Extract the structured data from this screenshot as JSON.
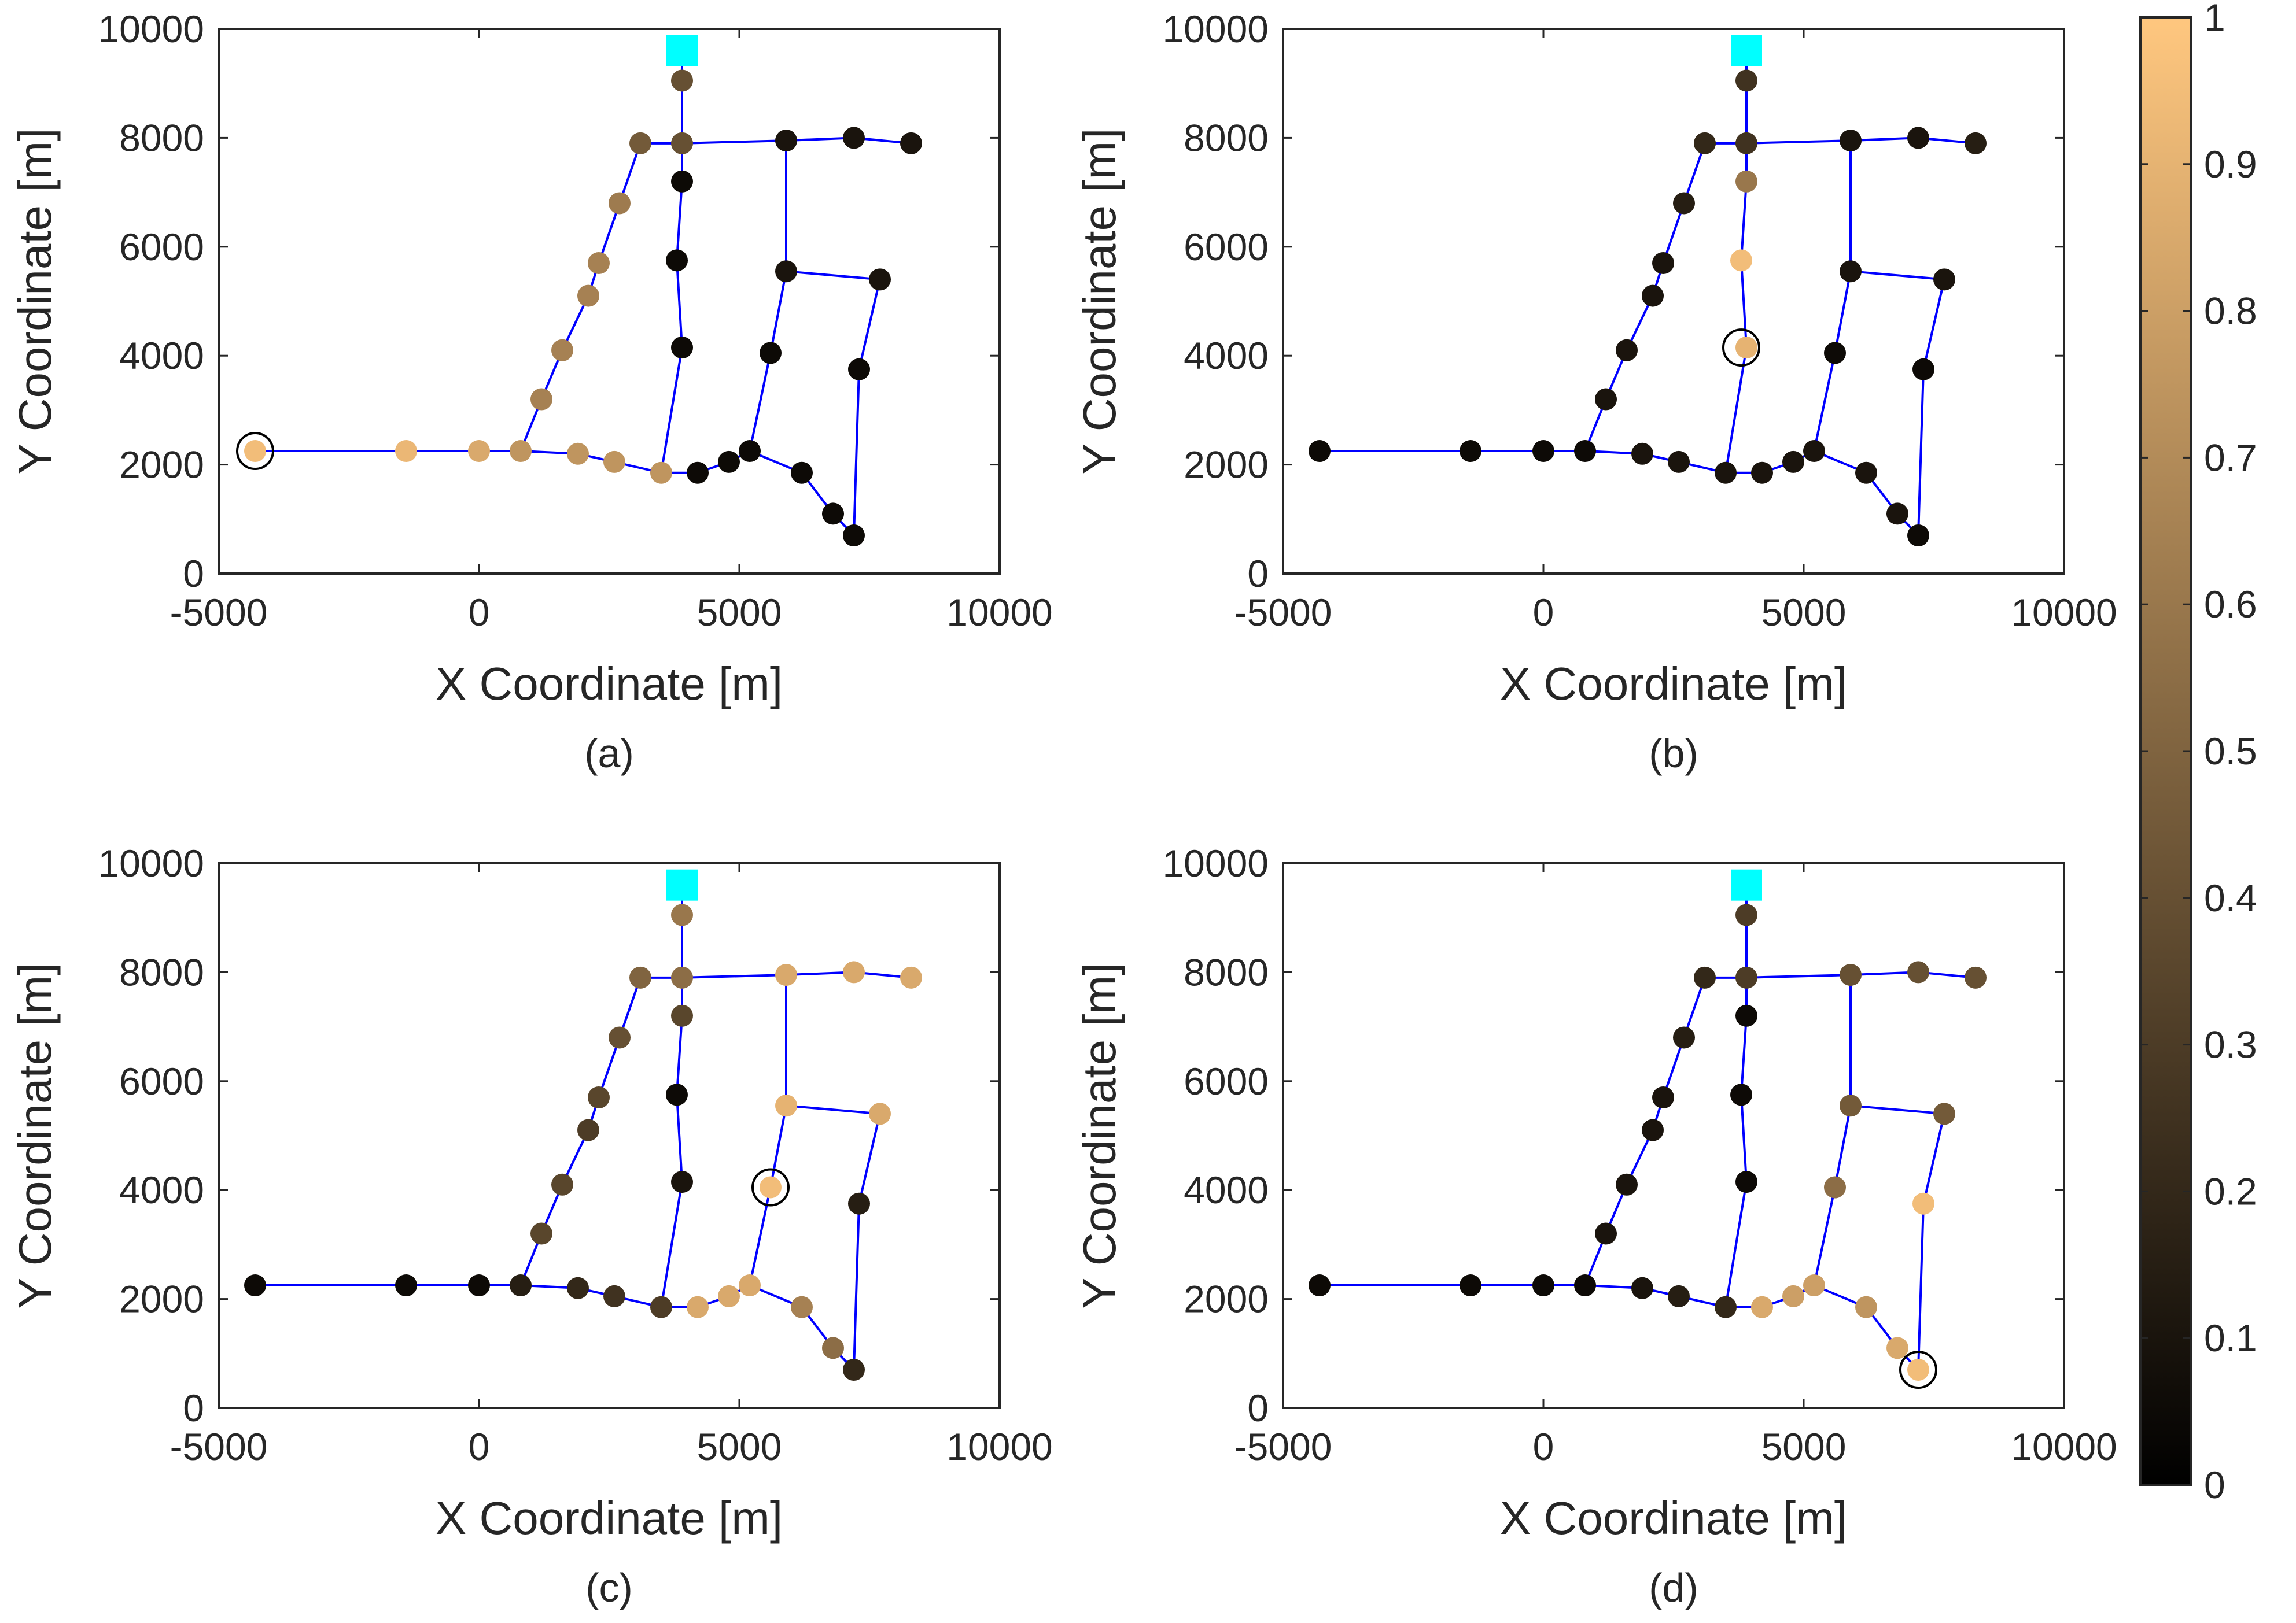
{
  "figure": {
    "colors": {
      "edge": "#0000ff",
      "source_marker": "#00ffff",
      "axes_frame": "#262626",
      "highlight_ring": "#000000"
    },
    "colormap": {
      "name": "copper",
      "stops": [
        "#000000",
        "#ffc77f"
      ]
    },
    "colorbar": {
      "min": 0,
      "max": 1,
      "ticks": [
        0,
        0.1,
        0.2,
        0.3,
        0.4,
        0.5,
        0.6,
        0.7,
        0.8,
        0.9,
        1
      ],
      "tick_labels": [
        "0",
        "0.1",
        "0.2",
        "0.3",
        "0.4",
        "0.5",
        "0.6",
        "0.7",
        "0.8",
        "0.9",
        "1"
      ]
    }
  },
  "chart_data": [
    {
      "type": "scatter",
      "caption": "(a)",
      "xlabel": "X Coordinate [m]",
      "ylabel": "Y Coordinate [m]",
      "xlim": [
        -5000,
        10000
      ],
      "ylim": [
        0,
        10000
      ],
      "xticks": [
        -5000,
        0,
        5000,
        10000
      ],
      "xtick_labels": [
        "-5000",
        "0",
        "5000",
        "10000"
      ],
      "yticks": [
        0,
        2000,
        4000,
        6000,
        8000,
        10000
      ],
      "ytick_labels": [
        "0",
        "2000",
        "4000",
        "6000",
        "8000",
        "10000"
      ],
      "source": {
        "x": 3900,
        "y": 9600
      },
      "nodes": {
        "x": [
          -4300,
          -1400,
          0,
          800,
          1900,
          2600,
          3500,
          4200,
          4800,
          5200,
          6200,
          6800,
          7200,
          1200,
          1600,
          2100,
          2300,
          2700,
          3100,
          3900,
          3900,
          3900,
          3800,
          3900,
          5600,
          5900,
          5900,
          7200,
          8300,
          7700,
          7300
        ],
        "y": [
          2250,
          2250,
          2250,
          2250,
          2200,
          2050,
          1850,
          1850,
          2050,
          2250,
          1850,
          1100,
          700,
          3200,
          4100,
          5100,
          5700,
          6800,
          7900,
          9050,
          7900,
          7200,
          5750,
          4150,
          4050,
          5550,
          7950,
          8000,
          7900,
          5400,
          3750
        ],
        "values": [
          0.95,
          0.92,
          0.85,
          0.75,
          0.75,
          0.75,
          0.75,
          0.05,
          0.05,
          0.05,
          0.05,
          0.05,
          0.05,
          0.65,
          0.65,
          0.65,
          0.65,
          0.62,
          0.45,
          0.4,
          0.4,
          0.05,
          0.05,
          0.05,
          0.05,
          0.1,
          0.1,
          0.1,
          0.1,
          0.1,
          0.05
        ]
      },
      "highlight": {
        "x": -4300,
        "y": 2250
      }
    },
    {
      "type": "scatter",
      "caption": "(b)",
      "xlabel": "X Coordinate [m]",
      "ylabel": "Y Coordinate [m]",
      "xlim": [
        -5000,
        10000
      ],
      "ylim": [
        0,
        10000
      ],
      "xticks": [
        -5000,
        0,
        5000,
        10000
      ],
      "xtick_labels": [
        "-5000",
        "0",
        "5000",
        "10000"
      ],
      "yticks": [
        0,
        2000,
        4000,
        6000,
        8000,
        10000
      ],
      "ytick_labels": [
        "0",
        "2000",
        "4000",
        "6000",
        "8000",
        "10000"
      ],
      "source": {
        "x": 3900,
        "y": 9600
      },
      "nodes": {
        "x": [
          -4300,
          -1400,
          0,
          800,
          1900,
          2600,
          3500,
          4200,
          4800,
          5200,
          6200,
          6800,
          7200,
          1200,
          1600,
          2100,
          2300,
          2700,
          3100,
          3900,
          3900,
          3900,
          3800,
          3900,
          5600,
          5900,
          5900,
          7200,
          8300,
          7700,
          7300
        ],
        "y": [
          2250,
          2250,
          2250,
          2250,
          2200,
          2050,
          1850,
          1850,
          2050,
          2250,
          1850,
          1100,
          700,
          3200,
          4100,
          5100,
          5700,
          6800,
          7900,
          9050,
          7900,
          7200,
          5750,
          4150,
          4050,
          5550,
          7950,
          8000,
          7900,
          5400,
          3750
        ],
        "values": [
          0.05,
          0.05,
          0.05,
          0.05,
          0.1,
          0.1,
          0.1,
          0.1,
          0.1,
          0.1,
          0.1,
          0.1,
          0.05,
          0.1,
          0.1,
          0.1,
          0.1,
          0.15,
          0.2,
          0.25,
          0.25,
          0.6,
          0.95,
          0.9,
          0.05,
          0.1,
          0.1,
          0.1,
          0.15,
          0.1,
          0.05
        ]
      },
      "highlight": {
        "x": 3800,
        "y": 4150
      }
    },
    {
      "type": "scatter",
      "caption": "(c)",
      "xlabel": "X Coordinate [m]",
      "ylabel": "Y Coordinate [m]",
      "xlim": [
        -5000,
        10000
      ],
      "ylim": [
        0,
        10000
      ],
      "xticks": [
        -5000,
        0,
        5000,
        10000
      ],
      "xtick_labels": [
        "-5000",
        "0",
        "5000",
        "10000"
      ],
      "yticks": [
        0,
        2000,
        4000,
        6000,
        8000,
        10000
      ],
      "ytick_labels": [
        "0",
        "2000",
        "4000",
        "6000",
        "8000",
        "10000"
      ],
      "source": {
        "x": 3900,
        "y": 9600
      },
      "nodes": {
        "x": [
          -4300,
          -1400,
          0,
          800,
          1900,
          2600,
          3500,
          4200,
          4800,
          5200,
          6200,
          6800,
          7200,
          1200,
          1600,
          2100,
          2300,
          2700,
          3100,
          3900,
          3900,
          3900,
          3800,
          3900,
          5600,
          5900,
          5900,
          7200,
          8300,
          7700,
          7300
        ],
        "y": [
          2250,
          2250,
          2250,
          2250,
          2200,
          2050,
          1850,
          1850,
          2050,
          2250,
          1850,
          1100,
          700,
          3200,
          4100,
          5100,
          5700,
          6800,
          7900,
          9050,
          7900,
          7200,
          5750,
          4150,
          4050,
          5550,
          7950,
          8000,
          7900,
          5400,
          3750
        ],
        "values": [
          0.05,
          0.05,
          0.05,
          0.15,
          0.2,
          0.25,
          0.3,
          0.85,
          0.85,
          0.85,
          0.65,
          0.55,
          0.2,
          0.35,
          0.35,
          0.3,
          0.35,
          0.4,
          0.5,
          0.6,
          0.55,
          0.35,
          0.05,
          0.1,
          0.95,
          0.9,
          0.85,
          0.85,
          0.85,
          0.85,
          0.15
        ]
      },
      "highlight": {
        "x": 5600,
        "y": 4050
      }
    },
    {
      "type": "scatter",
      "caption": "(d)",
      "xlabel": "X Coordinate [m]",
      "ylabel": "Y Coordinate [m]",
      "xlim": [
        -5000,
        10000
      ],
      "ylim": [
        0,
        10000
      ],
      "xticks": [
        -5000,
        0,
        5000,
        10000
      ],
      "xtick_labels": [
        "-5000",
        "0",
        "5000",
        "10000"
      ],
      "yticks": [
        0,
        2000,
        4000,
        6000,
        8000,
        10000
      ],
      "ytick_labels": [
        "0",
        "2000",
        "4000",
        "6000",
        "8000",
        "10000"
      ],
      "source": {
        "x": 3900,
        "y": 9600
      },
      "nodes": {
        "x": [
          -4300,
          -1400,
          0,
          800,
          1900,
          2600,
          3500,
          4200,
          4800,
          5200,
          6200,
          6800,
          7200,
          1200,
          1600,
          2100,
          2300,
          2700,
          3100,
          3900,
          3900,
          3900,
          3800,
          3900,
          5600,
          5900,
          5900,
          7200,
          8300,
          7700,
          7300
        ],
        "y": [
          2250,
          2250,
          2250,
          2250,
          2200,
          2050,
          1850,
          1850,
          2050,
          2250,
          1850,
          1100,
          700,
          3200,
          4100,
          5100,
          5700,
          6800,
          7900,
          9050,
          7900,
          7200,
          5750,
          4150,
          4050,
          5550,
          7950,
          8000,
          7900,
          5400,
          3750
        ],
        "values": [
          0.05,
          0.05,
          0.05,
          0.05,
          0.1,
          0.15,
          0.2,
          0.85,
          0.8,
          0.8,
          0.75,
          0.85,
          0.95,
          0.1,
          0.1,
          0.1,
          0.1,
          0.15,
          0.2,
          0.3,
          0.3,
          0.05,
          0.05,
          0.05,
          0.55,
          0.45,
          0.4,
          0.4,
          0.4,
          0.45,
          0.95
        ]
      },
      "highlight": {
        "x": 7200,
        "y": 700
      }
    }
  ]
}
